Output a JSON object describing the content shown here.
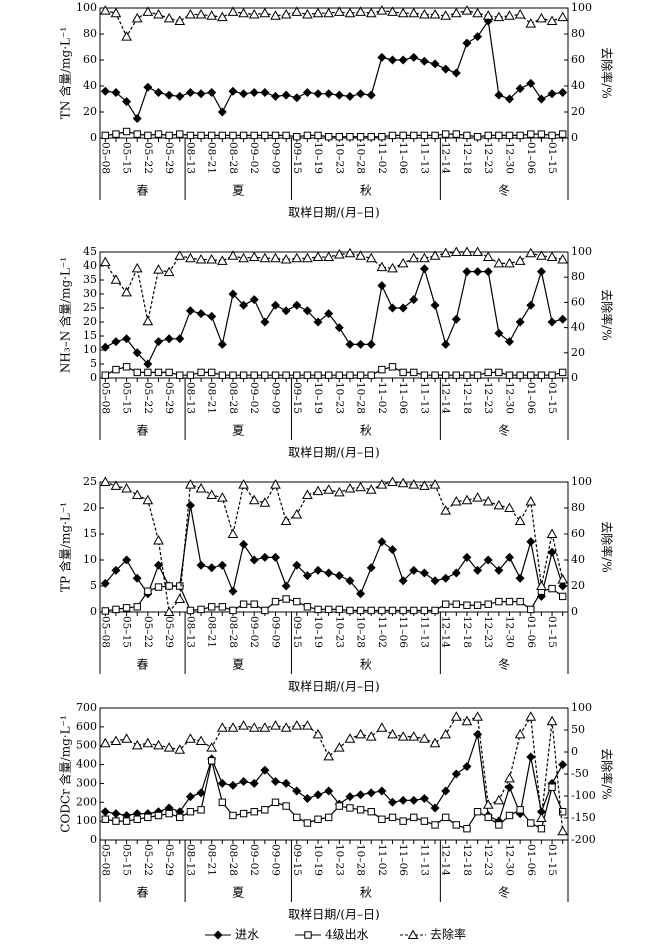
{
  "chart_data": [
    {
      "type": "line",
      "ylabel": "TN 含量/mg·L⁻¹",
      "y2label": "去除率/%",
      "xlabel": "取样日期/(月–日)",
      "categories": [
        "05–08",
        null,
        "05–15",
        null,
        "05–22",
        null,
        "05–29",
        null,
        "08–13",
        null,
        "08–21",
        null,
        "08–28",
        null,
        "09–02",
        null,
        "09–09",
        null,
        "09–15",
        null,
        "10–19",
        null,
        "10–23",
        null,
        "10–28",
        null,
        "11–02",
        null,
        "11–06",
        null,
        "11–13",
        null,
        "12–14",
        null,
        "12–18",
        null,
        "12–23",
        null,
        "12–30",
        null,
        "01–06",
        null,
        "01–15",
        null
      ],
      "seasons": [
        {
          "label": "春",
          "start": 0,
          "end": 7
        },
        {
          "label": "夏",
          "start": 8,
          "end": 17
        },
        {
          "label": "秋",
          "start": 18,
          "end": 31
        },
        {
          "label": "冬",
          "start": 32,
          "end": 43
        }
      ],
      "ylim": [
        0,
        100
      ],
      "yticks": [
        0,
        20,
        40,
        60,
        80,
        100
      ],
      "y2lim": [
        0,
        100
      ],
      "y2ticks": [
        0,
        20,
        40,
        60,
        80,
        100
      ],
      "series": [
        {
          "name": "进水",
          "color": "#000000",
          "values": [
            36,
            35,
            28,
            15,
            39,
            35,
            33,
            32,
            35,
            34,
            35,
            20,
            36,
            34,
            35,
            35,
            32,
            33,
            31,
            35,
            34,
            34,
            33,
            32,
            34,
            33,
            62,
            60,
            60,
            62,
            59,
            57,
            53,
            50,
            73,
            78,
            90,
            33,
            30,
            38,
            42,
            30,
            34,
            35
          ]
        },
        {
          "name": "4级出水",
          "color": "#000000",
          "values": [
            2,
            3,
            5,
            3,
            2,
            3,
            2,
            3,
            2,
            2,
            2,
            2,
            2,
            2,
            2,
            2,
            2,
            2,
            1,
            2,
            2,
            1,
            1,
            1,
            1,
            1,
            1,
            2,
            2,
            2,
            2,
            2,
            3,
            3,
            2,
            1,
            2,
            2,
            2,
            2,
            3,
            3,
            2,
            3
          ]
        },
        {
          "name": "去除率",
          "color": "#000000",
          "axis": "y2",
          "values": [
            98,
            96,
            78,
            92,
            97,
            95,
            92,
            90,
            95,
            95,
            94,
            93,
            97,
            96,
            95,
            96,
            94,
            95,
            97,
            95,
            96,
            96,
            97,
            96,
            97,
            96,
            98,
            97,
            96,
            96,
            95,
            95,
            94,
            96,
            98,
            96,
            94,
            93,
            94,
            95,
            88,
            92,
            90,
            93
          ]
        }
      ]
    },
    {
      "type": "line",
      "ylabel": "NH₃–N 含量/mg·L⁻¹",
      "y2label": "去除率/%",
      "xlabel": "取样日期/(月–日)",
      "categories": [
        "05–08",
        null,
        "05–15",
        null,
        "05–22",
        null,
        "05–29",
        null,
        "08–13",
        null,
        "08–21",
        null,
        "08–28",
        null,
        "09–02",
        null,
        "09–09",
        null,
        "09–15",
        null,
        "10–19",
        null,
        "10–23",
        null,
        "10–28",
        null,
        "11–02",
        null,
        "11–06",
        null,
        "11–13",
        null,
        "12–14",
        null,
        "12–18",
        null,
        "12–23",
        null,
        "12–30",
        null,
        "01–06",
        null,
        "01–15",
        null
      ],
      "seasons": [
        {
          "label": "春",
          "start": 0,
          "end": 7
        },
        {
          "label": "夏",
          "start": 8,
          "end": 17
        },
        {
          "label": "秋",
          "start": 18,
          "end": 31
        },
        {
          "label": "冬",
          "start": 32,
          "end": 43
        }
      ],
      "ylim": [
        0,
        45
      ],
      "yticks": [
        0,
        5,
        10,
        15,
        20,
        25,
        30,
        35,
        40,
        45
      ],
      "y2lim": [
        0,
        100
      ],
      "y2ticks": [
        0,
        20,
        40,
        60,
        80,
        100
      ],
      "series": [
        {
          "name": "进水",
          "color": "#000000",
          "values": [
            11,
            13,
            14,
            9,
            5,
            13,
            14,
            14,
            24,
            23,
            22,
            12,
            30,
            26,
            28,
            20,
            26,
            24,
            26,
            24,
            20,
            23,
            18,
            12,
            12,
            12,
            33,
            25,
            25,
            28,
            39,
            26,
            12,
            21,
            38,
            38,
            38,
            16,
            13,
            20,
            26,
            38,
            20,
            21
          ]
        },
        {
          "name": "4级出水",
          "color": "#000000",
          "values": [
            1,
            3,
            4,
            2,
            2,
            2,
            2,
            1,
            1,
            2,
            2,
            1,
            1,
            1,
            1,
            1,
            1,
            1,
            1,
            1,
            1,
            1,
            1,
            1,
            1,
            1,
            3,
            4,
            2,
            2,
            1,
            1,
            1,
            1,
            1,
            1,
            2,
            2,
            1,
            1,
            1,
            1,
            1,
            2
          ]
        },
        {
          "name": "去除率",
          "color": "#000000",
          "axis": "y2",
          "values": [
            92,
            78,
            68,
            87,
            45,
            86,
            84,
            97,
            95,
            94,
            94,
            93,
            97,
            95,
            96,
            95,
            95,
            94,
            95,
            95,
            96,
            96,
            98,
            99,
            97,
            95,
            88,
            87,
            91,
            95,
            95,
            97,
            99,
            100,
            100,
            100,
            96,
            91,
            91,
            93,
            99,
            97,
            96,
            94
          ]
        }
      ]
    },
    {
      "type": "line",
      "ylabel": "TP 含量/mg·L⁻¹",
      "y2label": "去除率/%",
      "xlabel": "取样日期/(月–日)",
      "categories": [
        "05–08",
        null,
        "05–15",
        null,
        "05–22",
        null,
        "05–29",
        null,
        "08–13",
        null,
        "08–21",
        null,
        "08–28",
        null,
        "09–02",
        null,
        "09–09",
        null,
        "09–15",
        null,
        "10–19",
        null,
        "10–23",
        null,
        "10–28",
        null,
        "11–02",
        null,
        "11–06",
        null,
        "11–13",
        null,
        "12–14",
        null,
        "12–18",
        null,
        "12–23",
        null,
        "12–30",
        null,
        "01–06",
        null,
        "01–15",
        null
      ],
      "seasons": [
        {
          "label": "春",
          "start": 0,
          "end": 7
        },
        {
          "label": "夏",
          "start": 8,
          "end": 17
        },
        {
          "label": "秋",
          "start": 18,
          "end": 31
        },
        {
          "label": "冬",
          "start": 32,
          "end": 43
        }
      ],
      "ylim": [
        0,
        25
      ],
      "yticks": [
        0,
        5,
        10,
        15,
        20,
        25
      ],
      "y2lim": [
        0,
        100
      ],
      "y2ticks": [
        0,
        20,
        40,
        60,
        80,
        100
      ],
      "series": [
        {
          "name": "进水",
          "color": "#000000",
          "values": [
            5.5,
            8,
            10,
            6.5,
            3.5,
            9,
            5,
            5,
            20.5,
            9,
            8.5,
            9,
            4,
            13,
            10,
            10.5,
            10.5,
            5,
            9,
            7,
            8,
            7.5,
            7,
            6,
            3.5,
            8.5,
            13.5,
            12,
            6,
            8,
            7.5,
            6,
            6.5,
            7.5,
            10.5,
            8,
            10,
            8,
            10.5,
            6.5,
            13.5,
            3,
            11.5,
            5
          ]
        },
        {
          "name": "4级出水",
          "color": "#000000",
          "values": [
            0.2,
            0.5,
            0.8,
            1,
            4,
            4.8,
            5,
            5,
            0.3,
            0.5,
            1,
            1,
            0.3,
            1.5,
            1.5,
            0.3,
            2,
            2.5,
            2,
            1,
            0.5,
            0.5,
            0.5,
            0.3,
            0.3,
            0.3,
            0.3,
            0.3,
            0.3,
            0.3,
            0.3,
            0.3,
            1.5,
            1.5,
            1.3,
            1.3,
            1.5,
            2,
            2,
            2,
            0.5,
            4,
            4.5,
            3
          ]
        },
        {
          "name": "去除率",
          "color": "#000000",
          "axis": "y2",
          "values": [
            100,
            97,
            95,
            90,
            86,
            55,
            0,
            10,
            98,
            95,
            90,
            88,
            60,
            98,
            86,
            84,
            98,
            70,
            75,
            90,
            93,
            94,
            92,
            95,
            96,
            94,
            98,
            100,
            99,
            98,
            97,
            98,
            78,
            85,
            86,
            88,
            85,
            82,
            80,
            70,
            85,
            20,
            60,
            25
          ]
        }
      ]
    },
    {
      "type": "line",
      "ylabel": "CODCr 含量/mg·L⁻¹",
      "y2label": "去除率/%",
      "xlabel": "取样日期/(月–日)",
      "categories": [
        "05–08",
        null,
        "05–15",
        null,
        "05–22",
        null,
        "05–29",
        null,
        "08–13",
        null,
        "08–21",
        null,
        "08–28",
        null,
        "09–02",
        null,
        "09–09",
        null,
        "09–15",
        null,
        "10–19",
        null,
        "10–23",
        null,
        "10–28",
        null,
        "11–02",
        null,
        "11–06",
        null,
        "11–13",
        null,
        "12–14",
        null,
        "12–18",
        null,
        "12–23",
        null,
        "12–30",
        null,
        "01–06",
        null,
        "01–15",
        null
      ],
      "seasons": [
        {
          "label": "春",
          "start": 0,
          "end": 7
        },
        {
          "label": "夏",
          "start": 8,
          "end": 17
        },
        {
          "label": "秋",
          "start": 18,
          "end": 31
        },
        {
          "label": "冬",
          "start": 32,
          "end": 43
        }
      ],
      "ylim": [
        0,
        700
      ],
      "yticks": [
        0,
        100,
        200,
        300,
        400,
        500,
        600,
        700
      ],
      "y2lim": [
        -200,
        100
      ],
      "y2ticks": [
        -200,
        -150,
        -100,
        -50,
        0,
        50,
        100
      ],
      "series": [
        {
          "name": "进水",
          "color": "#000000",
          "values": [
            150,
            140,
            130,
            140,
            140,
            150,
            170,
            150,
            230,
            250,
            430,
            300,
            290,
            310,
            300,
            370,
            310,
            300,
            260,
            220,
            240,
            260,
            190,
            230,
            240,
            250,
            260,
            200,
            210,
            210,
            220,
            170,
            260,
            350,
            390,
            560,
            130,
            100,
            280,
            140,
            440,
            150,
            300,
            400
          ]
        },
        {
          "name": "4级出水",
          "color": "#000000",
          "values": [
            110,
            100,
            100,
            110,
            120,
            130,
            140,
            120,
            150,
            160,
            420,
            200,
            130,
            140,
            150,
            160,
            200,
            180,
            120,
            90,
            110,
            120,
            180,
            170,
            160,
            150,
            110,
            120,
            100,
            120,
            100,
            80,
            120,
            80,
            60,
            150,
            120,
            80,
            130,
            160,
            90,
            60,
            280,
            150
          ]
        },
        {
          "name": "去除率",
          "color": "#000000",
          "axis": "y2",
          "values": [
            20,
            25,
            30,
            15,
            20,
            15,
            10,
            5,
            30,
            25,
            10,
            55,
            55,
            60,
            55,
            55,
            60,
            55,
            60,
            60,
            40,
            -10,
            10,
            30,
            40,
            35,
            55,
            40,
            35,
            35,
            30,
            20,
            40,
            80,
            70,
            80,
            -120,
            -110,
            -60,
            40,
            80,
            -150,
            70,
            -180
          ]
        }
      ]
    }
  ]
}
